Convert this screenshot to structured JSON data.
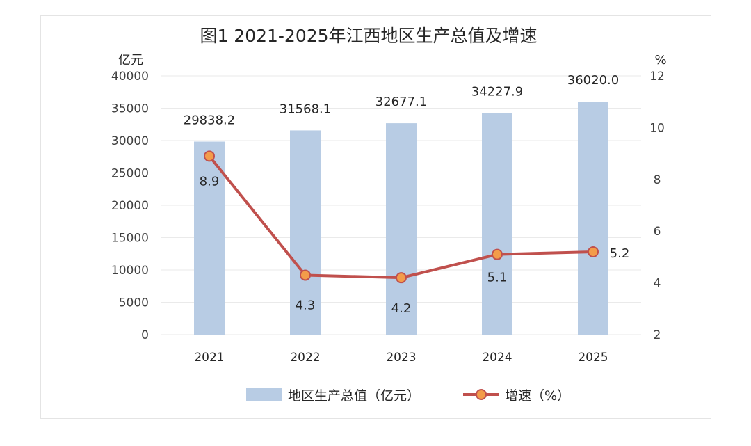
{
  "chart_data": {
    "type": "bar+line",
    "title": "图1 2021-2025年江西地区生产总值及增速",
    "left_unit": "亿元",
    "right_unit": "%",
    "categories": [
      "2021",
      "2022",
      "2023",
      "2024",
      "2025"
    ],
    "series": [
      {
        "name": "地区生产总值（亿元）",
        "type": "bar",
        "axis": "left",
        "values": [
          29838.2,
          31568.1,
          32677.1,
          34227.9,
          36020.0
        ],
        "labels": [
          "29838.2",
          "31568.1",
          "32677.1",
          "34227.9",
          "36020.0"
        ]
      },
      {
        "name": "增速（%）",
        "type": "line",
        "axis": "right",
        "values": [
          8.9,
          4.3,
          4.2,
          5.1,
          5.2
        ],
        "labels": [
          "8.9",
          "4.3",
          "4.2",
          "5.1",
          "5.2"
        ]
      }
    ],
    "y_left": {
      "min": 0,
      "max": 40000,
      "ticks": [
        "0",
        "5000",
        "10000",
        "15000",
        "20000",
        "25000",
        "30000",
        "35000",
        "40000"
      ]
    },
    "y_right": {
      "min": 2,
      "max": 12,
      "ticks": [
        "2",
        "4",
        "6",
        "8",
        "10",
        "12"
      ]
    },
    "grid": true,
    "legend_position": "bottom",
    "colors": {
      "bar": "#b8cce4",
      "line": "#c0504d",
      "marker_fill": "#f39c4a",
      "marker_edge": "#c0504d",
      "grid": "#eaeaea"
    }
  }
}
